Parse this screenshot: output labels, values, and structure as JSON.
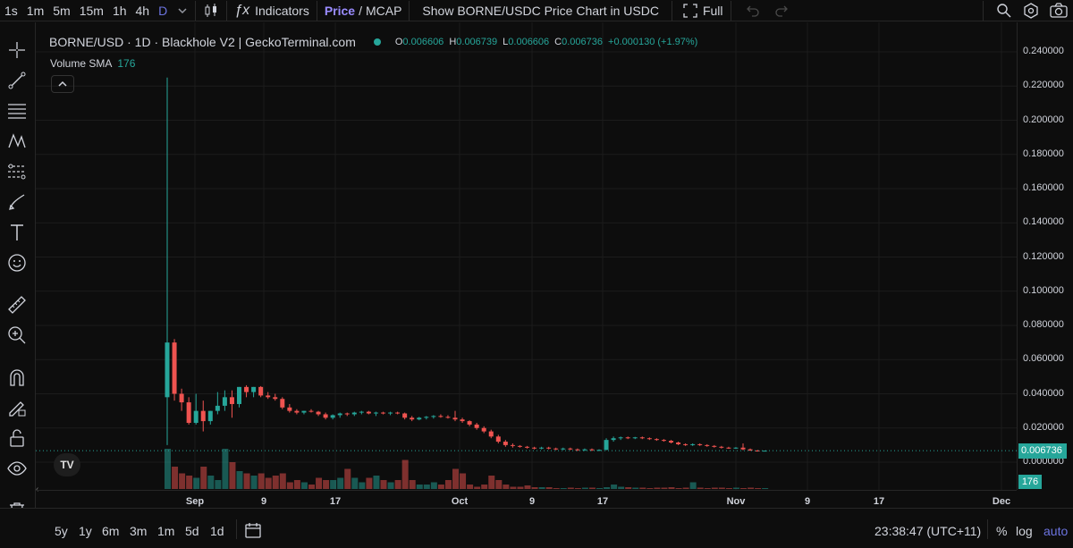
{
  "toolbar": {
    "timeframes": [
      "1s",
      "1m",
      "5m",
      "15m",
      "1h",
      "4h",
      "D"
    ],
    "indicators_label": "Indicators",
    "price_label": "Price",
    "slash": "/",
    "mcap_label": "MCAP",
    "show_chart_label": "Show BORNE/USDC Price Chart in USDC",
    "full_label": "Full"
  },
  "legend": {
    "title": "BORNE/USD · 1D · Blackhole V2 | GeckoTerminal.com",
    "o_label": "O",
    "o_value": "0.006606",
    "h_label": "H",
    "h_value": "0.006739",
    "l_label": "L",
    "l_value": "0.006606",
    "c_label": "C",
    "c_value": "0.006736",
    "change": "+0.000130 (+1.97%)",
    "volume_sma_label": "Volume SMA",
    "volume_sma_value": "176"
  },
  "price_axis": [
    "0.240000",
    "0.220000",
    "0.200000",
    "0.180000",
    "0.160000",
    "0.140000",
    "0.120000",
    "0.100000",
    "0.080000",
    "0.060000",
    "0.040000",
    "0.020000",
    "0.000000"
  ],
  "current_price": "0.006736",
  "volume_badge": "176",
  "time_axis": [
    "Sep",
    "9",
    "17",
    "Oct",
    "9",
    "17",
    "Nov",
    "9",
    "17",
    "Dec"
  ],
  "bottom": {
    "ranges": [
      "5y",
      "1y",
      "6m",
      "3m",
      "1m",
      "5d",
      "1d"
    ],
    "clock": "23:38:47 (UTC+11)",
    "percent": "%",
    "log": "log",
    "auto": "auto"
  },
  "colors": {
    "up": "#26a69a",
    "down": "#ef5350",
    "accent": "#9a8cff"
  },
  "chart_data": {
    "type": "candlestick",
    "ylim": [
      0,
      0.24
    ],
    "candles": [
      [
        0.038,
        0.225,
        0.01,
        0.07
      ],
      [
        0.07,
        0.072,
        0.036,
        0.04
      ],
      [
        0.04,
        0.043,
        0.03,
        0.035
      ],
      [
        0.035,
        0.038,
        0.022,
        0.023
      ],
      [
        0.023,
        0.04,
        0.022,
        0.03
      ],
      [
        0.03,
        0.036,
        0.018,
        0.024
      ],
      [
        0.024,
        0.03,
        0.022,
        0.03
      ],
      [
        0.03,
        0.041,
        0.028,
        0.033
      ],
      [
        0.033,
        0.042,
        0.03,
        0.038
      ],
      [
        0.038,
        0.042,
        0.026,
        0.034
      ],
      [
        0.034,
        0.044,
        0.032,
        0.044
      ],
      [
        0.044,
        0.045,
        0.038,
        0.041
      ],
      [
        0.041,
        0.044,
        0.038,
        0.044
      ],
      [
        0.044,
        0.0445,
        0.038,
        0.039
      ],
      [
        0.039,
        0.041,
        0.037,
        0.038
      ],
      [
        0.038,
        0.04,
        0.036,
        0.037
      ],
      [
        0.037,
        0.038,
        0.031,
        0.032
      ],
      [
        0.032,
        0.034,
        0.029,
        0.03
      ],
      [
        0.03,
        0.031,
        0.028,
        0.029
      ],
      [
        0.029,
        0.03,
        0.028,
        0.03
      ],
      [
        0.03,
        0.031,
        0.029,
        0.0295
      ],
      [
        0.0295,
        0.03,
        0.027,
        0.028
      ],
      [
        0.028,
        0.029,
        0.025,
        0.026
      ],
      [
        0.026,
        0.028,
        0.025,
        0.0275
      ],
      [
        0.0275,
        0.029,
        0.026,
        0.0285
      ],
      [
        0.0285,
        0.029,
        0.027,
        0.028
      ],
      [
        0.028,
        0.0295,
        0.027,
        0.029
      ],
      [
        0.029,
        0.03,
        0.028,
        0.0295
      ],
      [
        0.0295,
        0.03,
        0.028,
        0.0285
      ],
      [
        0.0285,
        0.0295,
        0.027,
        0.029
      ],
      [
        0.029,
        0.0295,
        0.028,
        0.0285
      ],
      [
        0.0285,
        0.0295,
        0.0275,
        0.029
      ],
      [
        0.029,
        0.0295,
        0.028,
        0.0285
      ],
      [
        0.0285,
        0.029,
        0.025,
        0.026
      ],
      [
        0.026,
        0.027,
        0.024,
        0.025
      ],
      [
        0.025,
        0.0265,
        0.0245,
        0.026
      ],
      [
        0.026,
        0.027,
        0.025,
        0.0265
      ],
      [
        0.0265,
        0.0275,
        0.0255,
        0.027
      ],
      [
        0.027,
        0.028,
        0.026,
        0.0265
      ],
      [
        0.0265,
        0.0275,
        0.0255,
        0.026
      ],
      [
        0.026,
        0.03,
        0.024,
        0.025
      ],
      [
        0.025,
        0.026,
        0.023,
        0.024
      ],
      [
        0.024,
        0.0245,
        0.021,
        0.022
      ],
      [
        0.022,
        0.023,
        0.019,
        0.02
      ],
      [
        0.02,
        0.021,
        0.017,
        0.018
      ],
      [
        0.018,
        0.019,
        0.014,
        0.015
      ],
      [
        0.015,
        0.016,
        0.011,
        0.012
      ],
      [
        0.012,
        0.013,
        0.009,
        0.01
      ],
      [
        0.01,
        0.011,
        0.0085,
        0.0095
      ],
      [
        0.0095,
        0.01,
        0.0085,
        0.009
      ],
      [
        0.009,
        0.0095,
        0.008,
        0.0085
      ],
      [
        0.0085,
        0.009,
        0.0075,
        0.008
      ],
      [
        0.008,
        0.009,
        0.0075,
        0.0085
      ],
      [
        0.0085,
        0.009,
        0.0075,
        0.008
      ],
      [
        0.008,
        0.0085,
        0.007,
        0.0075
      ],
      [
        0.0075,
        0.0085,
        0.007,
        0.008
      ],
      [
        0.008,
        0.0085,
        0.007,
        0.0075
      ],
      [
        0.0075,
        0.008,
        0.0065,
        0.007
      ],
      [
        0.007,
        0.008,
        0.0065,
        0.0075
      ],
      [
        0.0075,
        0.008,
        0.0065,
        0.007
      ],
      [
        0.007,
        0.0075,
        0.0065,
        0.0072
      ],
      [
        0.0072,
        0.014,
        0.007,
        0.013
      ],
      [
        0.013,
        0.015,
        0.012,
        0.014
      ],
      [
        0.014,
        0.015,
        0.013,
        0.0145
      ],
      [
        0.0145,
        0.015,
        0.0135,
        0.014
      ],
      [
        0.014,
        0.0148,
        0.0135,
        0.0145
      ],
      [
        0.0145,
        0.015,
        0.0135,
        0.014
      ],
      [
        0.014,
        0.0145,
        0.013,
        0.0135
      ],
      [
        0.0135,
        0.014,
        0.0125,
        0.013
      ],
      [
        0.013,
        0.0135,
        0.012,
        0.0125
      ],
      [
        0.0125,
        0.013,
        0.011,
        0.0115
      ],
      [
        0.0115,
        0.012,
        0.01,
        0.0105
      ],
      [
        0.0105,
        0.011,
        0.0095,
        0.01
      ],
      [
        0.01,
        0.011,
        0.0095,
        0.0105
      ],
      [
        0.0105,
        0.011,
        0.0095,
        0.01
      ],
      [
        0.01,
        0.0105,
        0.009,
        0.0095
      ],
      [
        0.0095,
        0.01,
        0.0085,
        0.009
      ],
      [
        0.009,
        0.0095,
        0.008,
        0.0085
      ],
      [
        0.0085,
        0.009,
        0.0078,
        0.0082
      ],
      [
        0.0082,
        0.0088,
        0.0078,
        0.0085
      ],
      [
        0.0085,
        0.011,
        0.007,
        0.0075
      ],
      [
        0.0075,
        0.008,
        0.0066,
        0.0068
      ],
      [
        0.0068,
        0.0072,
        0.0062,
        0.0066
      ],
      [
        0.006606,
        0.006739,
        0.006606,
        0.006736
      ]
    ],
    "volume": [
      0.9,
      0.5,
      0.35,
      0.3,
      0.25,
      0.5,
      0.3,
      0.2,
      0.9,
      0.6,
      0.4,
      0.35,
      0.3,
      0.35,
      0.25,
      0.3,
      0.35,
      0.15,
      0.2,
      0.15,
      0.1,
      0.25,
      0.2,
      0.2,
      0.25,
      0.45,
      0.25,
      0.15,
      0.25,
      0.3,
      0.2,
      0.15,
      0.2,
      0.65,
      0.2,
      0.1,
      0.1,
      0.15,
      0.1,
      0.2,
      0.45,
      0.35,
      0.1,
      0.05,
      0.1,
      0.3,
      0.2,
      0.1,
      0.05,
      0.05,
      0.08,
      0.04,
      0.04,
      0.04,
      0.02,
      0.02,
      0.03,
      0.02,
      0.03,
      0.03,
      0.02,
      0.04,
      0.1,
      0.05,
      0.04,
      0.03,
      0.03,
      0.02,
      0.03,
      0.03,
      0.04,
      0.02,
      0.03,
      0.15,
      0.03,
      0.02,
      0.03,
      0.03,
      0.02,
      0.03,
      0.02,
      0.03,
      0.02,
      0.02
    ]
  }
}
